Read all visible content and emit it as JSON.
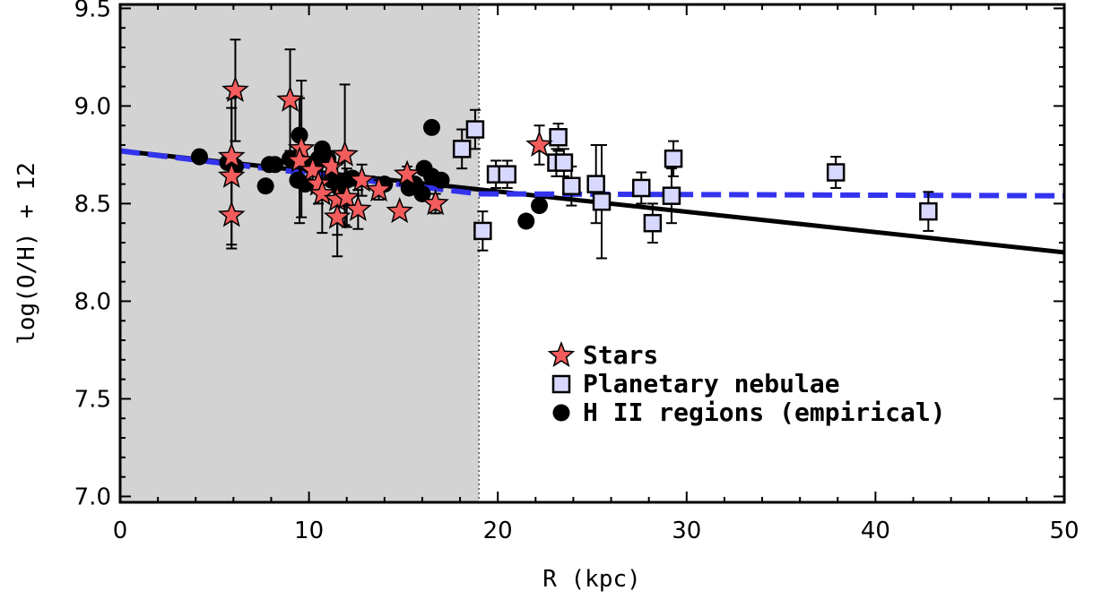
{
  "chart_data": {
    "type": "scatter",
    "xlabel": "R (kpc)",
    "ylabel": "log(O/H) + 12",
    "xlim": [
      0,
      50
    ],
    "ylim": [
      6.97,
      9.52
    ],
    "x_ticks": [
      "0",
      "10",
      "20",
      "30",
      "40",
      "50"
    ],
    "y_ticks": [
      "7.0",
      "7.5",
      "8.0",
      "8.5",
      "9.0",
      "9.5"
    ],
    "shaded_region": {
      "x_from": 0,
      "x_to": 19,
      "color": "#d3d3d3"
    },
    "legend": {
      "placement": "lower-center",
      "entries": [
        {
          "label": "Stars",
          "marker": "star"
        },
        {
          "label": "Planetary nebulae",
          "marker": "square"
        },
        {
          "label": "H II regions (empirical)",
          "marker": "circle"
        }
      ]
    },
    "colors": {
      "stars": "#f25c5c",
      "pn": "#d8d8ff",
      "hii": "#000000",
      "dashed_fit": "#3333ee",
      "solid_fit": "#000000"
    },
    "fit_lines": [
      {
        "name": "solid",
        "style": "solid",
        "x": [
          0,
          50
        ],
        "y": [
          8.77,
          8.25
        ]
      },
      {
        "name": "dashed",
        "style": "dashed",
        "x": [
          0,
          19,
          50
        ],
        "y": [
          8.77,
          8.55,
          8.54
        ]
      }
    ],
    "series": [
      {
        "name": "Stars",
        "marker": "star",
        "points": [
          {
            "x": 6.1,
            "y": 9.08,
            "err": 0.26
          },
          {
            "x": 5.9,
            "y": 8.74,
            "err": 0.3
          },
          {
            "x": 5.9,
            "y": 8.64,
            "err": 0.35
          },
          {
            "x": 5.9,
            "y": 8.44,
            "err": 0.17
          },
          {
            "x": 9.0,
            "y": 9.03,
            "err": 0.26
          },
          {
            "x": 9.6,
            "y": 8.78,
            "err": 0.35
          },
          {
            "x": 9.5,
            "y": 8.72,
            "err": 0.32
          },
          {
            "x": 10.2,
            "y": 8.67,
            "err": 0.05
          },
          {
            "x": 10.5,
            "y": 8.6,
            "err": 0.1
          },
          {
            "x": 10.7,
            "y": 8.55,
            "err": 0.2
          },
          {
            "x": 11.2,
            "y": 8.69,
            "err": 0.08
          },
          {
            "x": 11.5,
            "y": 8.52,
            "err": 0.18
          },
          {
            "x": 11.5,
            "y": 8.43,
            "err": 0.2
          },
          {
            "x": 11.9,
            "y": 8.75,
            "err": 0.36
          },
          {
            "x": 12.0,
            "y": 8.53,
            "err": 0.15
          },
          {
            "x": 12.6,
            "y": 8.47,
            "err": 0.1
          },
          {
            "x": 12.8,
            "y": 8.62,
            "err": 0.08
          },
          {
            "x": 13.7,
            "y": 8.57,
            "err": 0.05
          },
          {
            "x": 14.8,
            "y": 8.46,
            "err": 0.0
          },
          {
            "x": 15.2,
            "y": 8.65,
            "err": 0.04
          },
          {
            "x": 16.7,
            "y": 8.5,
            "err": 0.05
          },
          {
            "x": 22.2,
            "y": 8.8,
            "err": 0.1
          }
        ]
      },
      {
        "name": "Planetary nebulae",
        "marker": "square",
        "points": [
          {
            "x": 18.1,
            "y": 8.78,
            "err": 0.1
          },
          {
            "x": 18.8,
            "y": 8.88,
            "err": 0.1
          },
          {
            "x": 19.2,
            "y": 8.36,
            "err": 0.1
          },
          {
            "x": 19.9,
            "y": 8.65,
            "err": 0.07
          },
          {
            "x": 20.5,
            "y": 8.65,
            "err": 0.07
          },
          {
            "x": 23.2,
            "y": 8.84,
            "err": 0.07
          },
          {
            "x": 23.1,
            "y": 8.71,
            "err": 0.07
          },
          {
            "x": 23.5,
            "y": 8.71,
            "err": 0.07
          },
          {
            "x": 23.9,
            "y": 8.59,
            "err": 0.1
          },
          {
            "x": 25.2,
            "y": 8.6,
            "err": 0.2
          },
          {
            "x": 25.5,
            "y": 8.51,
            "err": 0.29
          },
          {
            "x": 27.6,
            "y": 8.58,
            "err": 0.08
          },
          {
            "x": 28.2,
            "y": 8.4,
            "err": 0.1
          },
          {
            "x": 29.2,
            "y": 8.54,
            "err": 0.14
          },
          {
            "x": 29.3,
            "y": 8.73,
            "err": 0.09
          },
          {
            "x": 37.9,
            "y": 8.66,
            "err": 0.08
          },
          {
            "x": 42.8,
            "y": 8.46,
            "err": 0.1
          }
        ]
      },
      {
        "name": "H II regions (empirical)",
        "marker": "circle",
        "points": [
          {
            "x": 4.2,
            "y": 8.74
          },
          {
            "x": 5.7,
            "y": 8.71
          },
          {
            "x": 6.1,
            "y": 8.69
          },
          {
            "x": 7.7,
            "y": 8.59
          },
          {
            "x": 7.9,
            "y": 8.7
          },
          {
            "x": 8.2,
            "y": 8.7
          },
          {
            "x": 9.0,
            "y": 8.73
          },
          {
            "x": 9.4,
            "y": 8.62
          },
          {
            "x": 9.5,
            "y": 8.85
          },
          {
            "x": 9.8,
            "y": 8.6
          },
          {
            "x": 10.0,
            "y": 8.7
          },
          {
            "x": 10.5,
            "y": 8.73
          },
          {
            "x": 10.7,
            "y": 8.78
          },
          {
            "x": 11.0,
            "y": 8.73
          },
          {
            "x": 11.2,
            "y": 8.62
          },
          {
            "x": 11.6,
            "y": 8.58
          },
          {
            "x": 12.0,
            "y": 8.62
          },
          {
            "x": 12.3,
            "y": 8.63
          },
          {
            "x": 14.0,
            "y": 8.6
          },
          {
            "x": 15.3,
            "y": 8.58
          },
          {
            "x": 15.6,
            "y": 8.6
          },
          {
            "x": 16.0,
            "y": 8.55
          },
          {
            "x": 16.1,
            "y": 8.68
          },
          {
            "x": 16.5,
            "y": 8.64
          },
          {
            "x": 16.5,
            "y": 8.89
          },
          {
            "x": 17.0,
            "y": 8.62
          },
          {
            "x": 21.5,
            "y": 8.41
          },
          {
            "x": 22.2,
            "y": 8.49
          }
        ]
      }
    ]
  }
}
